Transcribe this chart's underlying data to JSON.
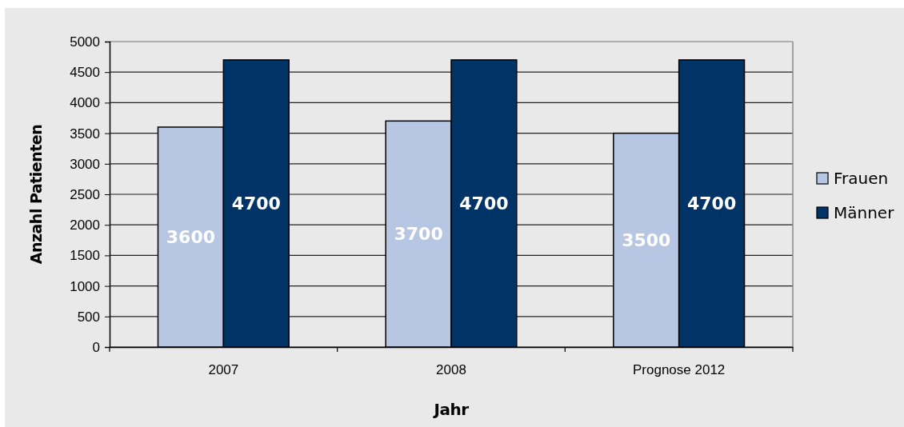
{
  "chart_data": {
    "type": "bar",
    "categories": [
      "2007",
      "2008",
      "Prognose 2012"
    ],
    "series": [
      {
        "name": "Frauen",
        "color": "#b7c6e2",
        "values": [
          3600,
          3700,
          3500
        ]
      },
      {
        "name": "Männer",
        "color": "#003366",
        "values": [
          4700,
          4700,
          4700
        ]
      }
    ],
    "xlabel": "Jahr",
    "ylabel": "Anzahl Patienten",
    "ylim": [
      0,
      5000
    ],
    "yticks": [
      0,
      500,
      1000,
      1500,
      2000,
      2500,
      3000,
      3500,
      4000,
      4500,
      5000
    ],
    "grid": "y",
    "legend": "right",
    "data_labels": true
  }
}
